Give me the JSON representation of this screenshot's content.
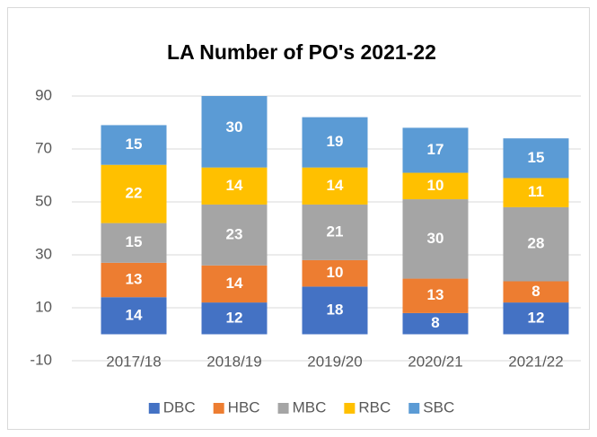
{
  "chart_data": {
    "type": "stacked_bar",
    "title": "LA Number of PO's 2021-22",
    "categories": [
      "2017/18",
      "2018/19",
      "2019/20",
      "2020/21",
      "2021/22"
    ],
    "series": [
      {
        "name": "DBC",
        "color": "#4472c4",
        "values": [
          14,
          12,
          18,
          8,
          12
        ]
      },
      {
        "name": "HBC",
        "color": "#ed7d31",
        "values": [
          13,
          14,
          10,
          13,
          8
        ]
      },
      {
        "name": "MBC",
        "color": "#a5a5a5",
        "values": [
          15,
          23,
          21,
          30,
          28
        ]
      },
      {
        "name": "RBC",
        "color": "#ffc000",
        "values": [
          22,
          14,
          14,
          10,
          11
        ]
      },
      {
        "name": "SBC",
        "color": "#5b9bd5",
        "values": [
          15,
          30,
          19,
          17,
          15
        ]
      }
    ],
    "ylim": [
      -10,
      90
    ],
    "yticks": [
      -10,
      10,
      30,
      50,
      70,
      90
    ],
    "grid": true,
    "legend": "bottom"
  }
}
